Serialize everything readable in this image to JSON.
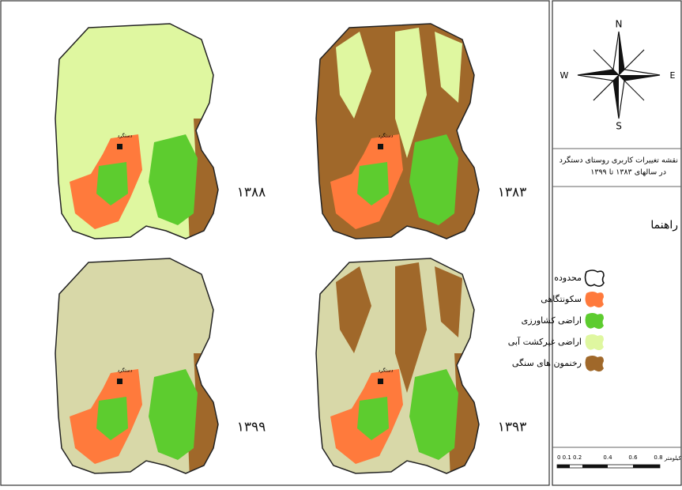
{
  "maps": [
    {
      "year": "۱۳۸۸",
      "village": "دستگرد"
    },
    {
      "year": "۱۳۸۳",
      "village": "دستگرد"
    },
    {
      "year": "۱۳۹۹",
      "village": "دستگرد"
    },
    {
      "year": "۱۳۹۳",
      "village": "دستگرد"
    }
  ],
  "compass": {
    "north": "N",
    "south": "S",
    "west": "W",
    "east": "E"
  },
  "title": {
    "line1": "نقشه تغییرات کاربری روستای دستگرد",
    "line2": "در سالهای ۱۳۸۳ تا ۱۳۹۹"
  },
  "legend": {
    "heading": "راهنما",
    "items": [
      "محدوده",
      "سکونتگاهی",
      "اراضی کشاورزی",
      "اراضی غیرکشت آبی",
      "رخنمون های سنگی"
    ]
  },
  "scale_bar": {
    "labels": [
      "0 0.1 0.2",
      "0.4",
      "0.6",
      "0.8"
    ],
    "unit": "کیلومتر"
  }
}
